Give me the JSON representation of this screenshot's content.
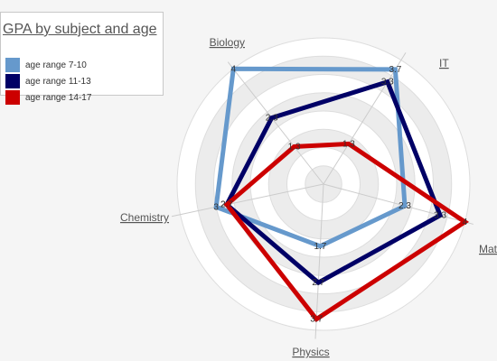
{
  "chart_data": {
    "type": "radar",
    "title": "GPA by subject and age",
    "axes": [
      "IT",
      "Math",
      "Physics",
      "Chemistry",
      "Biology"
    ],
    "rmax": 4,
    "rings": [
      0.5,
      1,
      1.5,
      2,
      2.5,
      3,
      3.5,
      4
    ],
    "grid": true,
    "legend_position": "top-left",
    "series": [
      {
        "name": "age range 7-10",
        "color": "#6699cc",
        "values": [
          3.7,
          2.3,
          1.7,
          3,
          4
        ],
        "labels": [
          "3.7",
          "2.3",
          "1.7",
          "3",
          "4"
        ]
      },
      {
        "name": "age range 11-13",
        "color": "#000066",
        "values": [
          3.3,
          3.3,
          2.7,
          2.7,
          2.3
        ],
        "labels": [
          "3.3",
          "3.3",
          "2.7",
          "2.7",
          "2.3"
        ]
      },
      {
        "name": "age range 14-17",
        "color": "#cc0000",
        "values": [
          1.3,
          4,
          3.7,
          2.7,
          1.3
        ],
        "labels": [
          "1.3",
          "4",
          "3.7",
          "2.7",
          "1.3"
        ]
      }
    ]
  }
}
